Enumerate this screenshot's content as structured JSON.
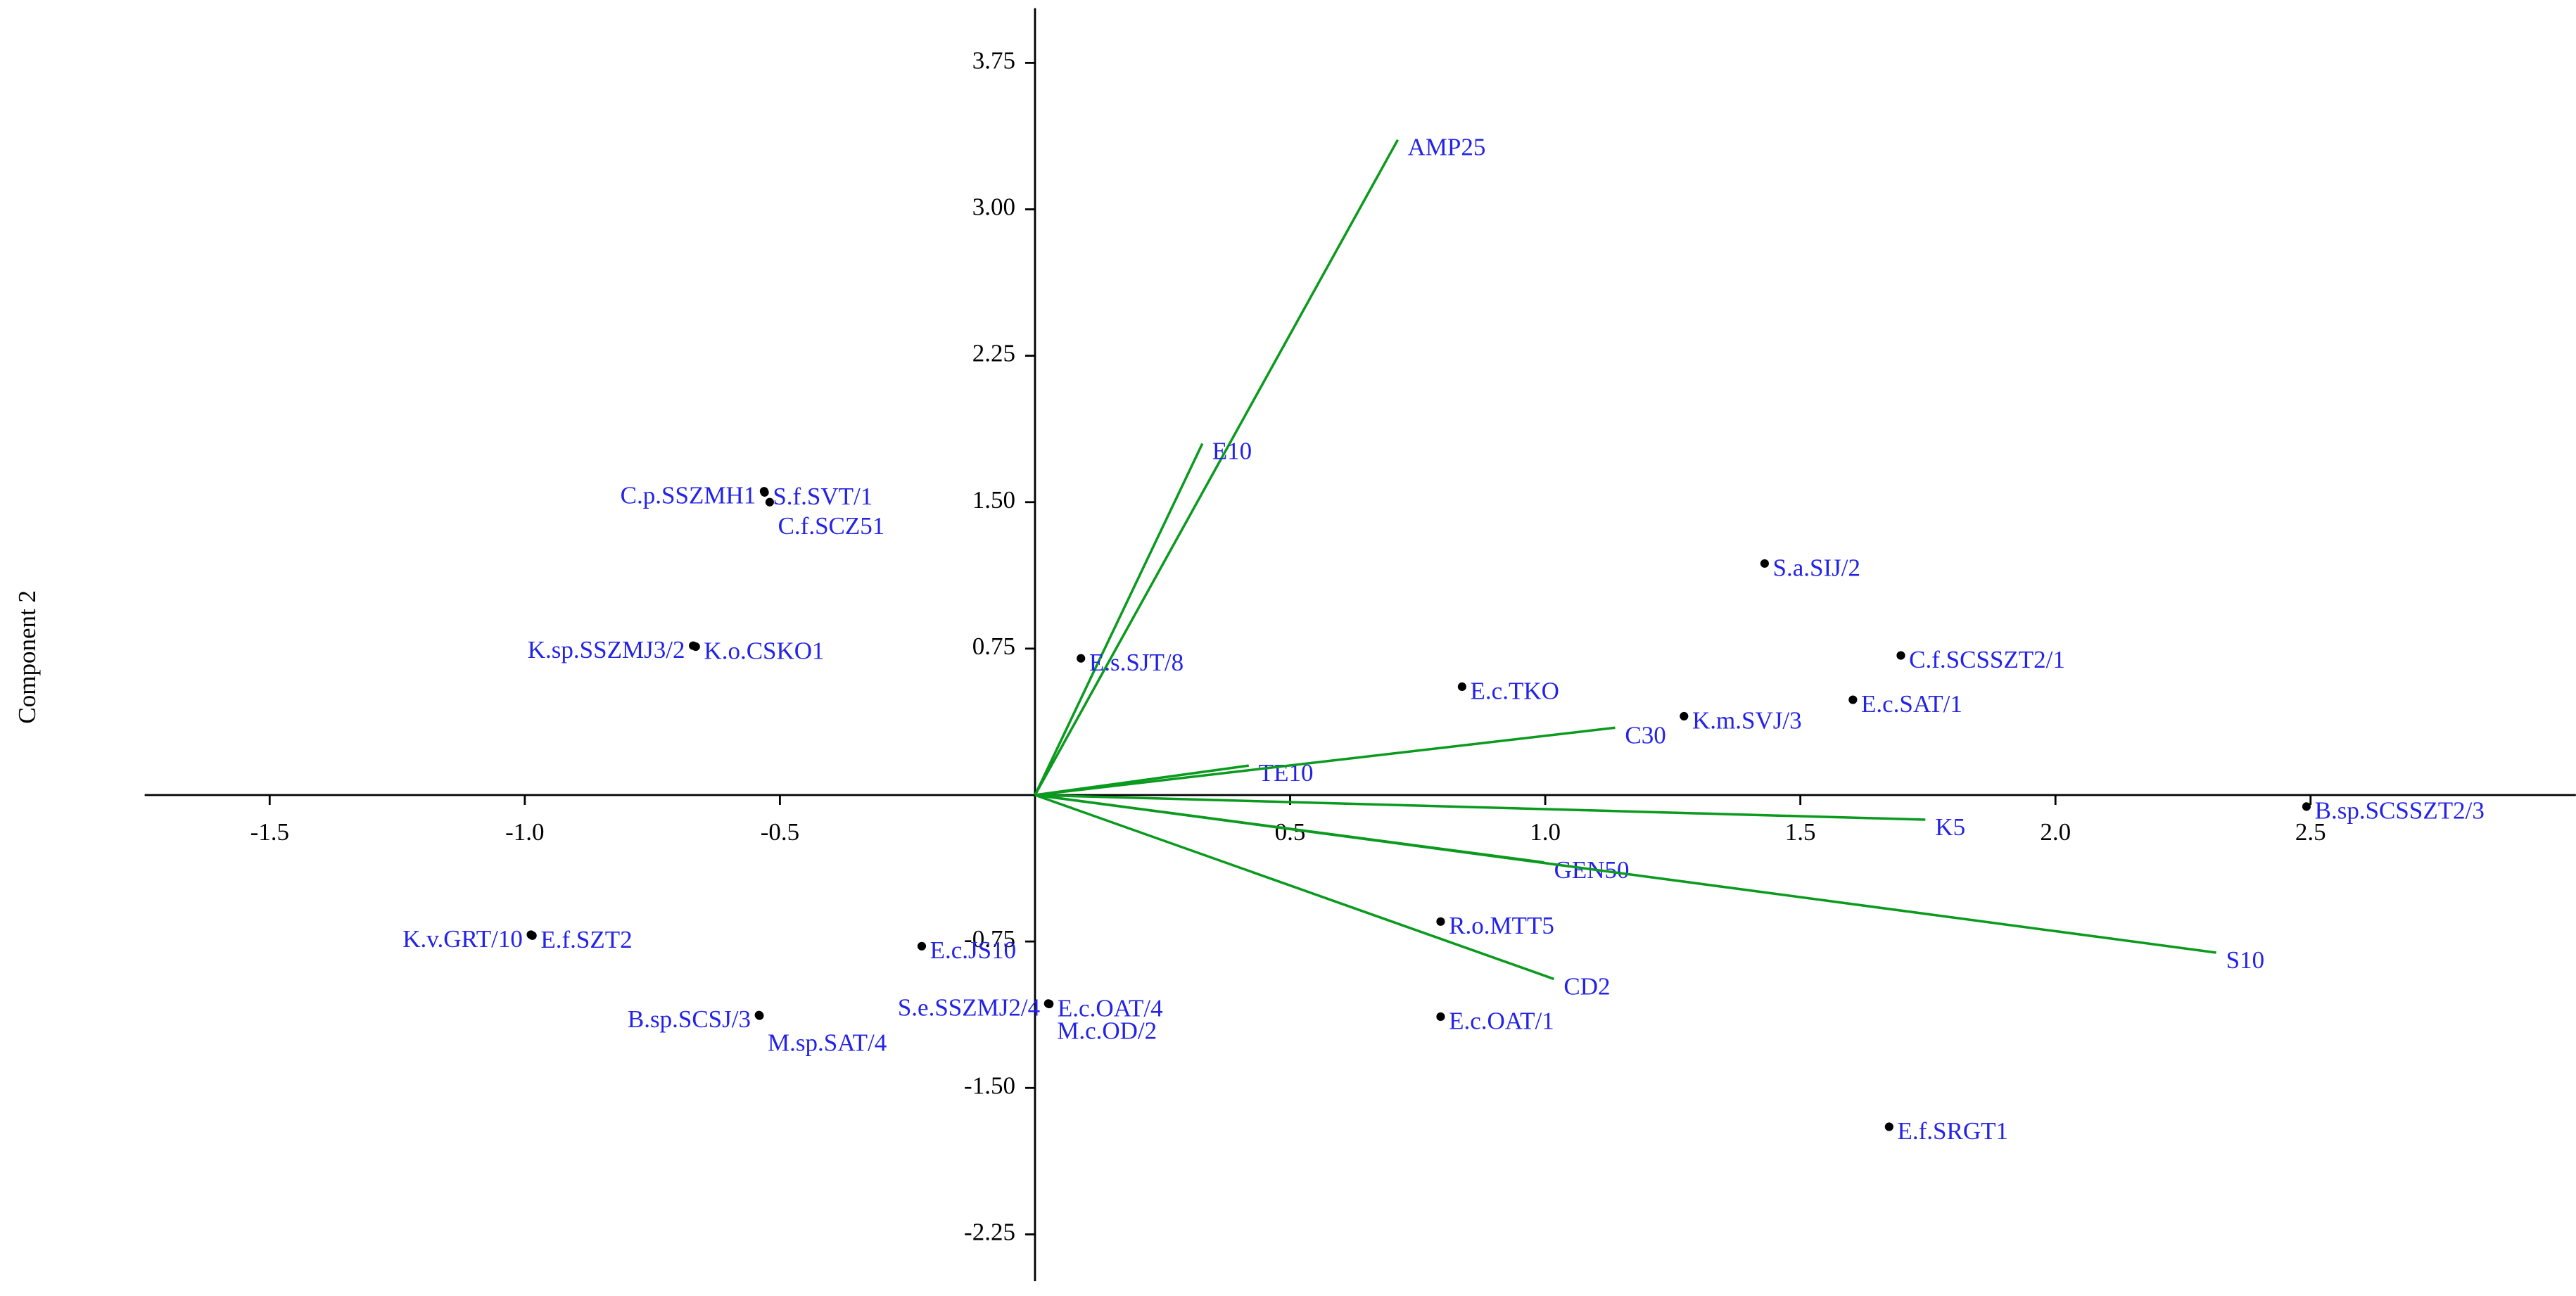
{
  "chart_data": {
    "type": "biplot",
    "y_label": "Component 2",
    "xlim": [
      -1.745,
      3.02
    ],
    "ylim": [
      -2.49,
      4.03
    ],
    "xticks": [
      -1.5,
      {
        "value": -1,
        "label": "-1.0"
      },
      -0.5,
      0.5,
      {
        "value": 1,
        "label": "1.0"
      },
      1.5,
      {
        "value": 2,
        "label": "2.0"
      },
      2.5
    ],
    "yticks": [
      {
        "value": -2.25,
        "label": "-2.25"
      },
      {
        "value": -1.5,
        "label": "-1.50"
      },
      -0.75,
      0.75,
      {
        "value": 1.5,
        "label": "1.50"
      },
      2.25,
      {
        "value": 3,
        "label": "3.00"
      },
      3.75
    ],
    "point_color": "#000000",
    "label_color": "#2323e8",
    "vector_color": "#0a9a1e",
    "points": {
      "labels": [
        "C.p.SSZMH1",
        "S.f.SVT/1",
        "C.f.SCZ51",
        "K.sp.SSZMJ3/2",
        "K.o.CSKO1",
        "E.s.SJT/8",
        "S.a.SIJ/2",
        "C.f.SCSSZT2/1",
        "E.c.TKO",
        "K.m.SVJ/3",
        "E.c.SAT/1",
        "B.sp.SCSSZT2/3",
        "R.o.MTT5",
        "E.c.OAT/1",
        "E.f.SRGT1",
        "E.c.JS10",
        "S.e.SSZMJ2/4",
        "E.c.OAT/4",
        "M.c.OD/2",
        "K.v.GRT/10",
        "E.f.SZT2",
        "B.sp.SCSJ/3",
        "M.sp.SAT/4"
      ],
      "x": [
        -0.531,
        -0.53,
        -0.52,
        -0.67,
        -0.665,
        0.09,
        1.43,
        1.697,
        0.837,
        1.272,
        1.603,
        2.492,
        0.795,
        0.795,
        1.674,
        -0.222,
        0.026,
        0.028,
        0.027,
        -0.988,
        -0.985,
        -0.541,
        -0.54
      ],
      "y": [
        1.556,
        1.55,
        1.5,
        0.765,
        0.76,
        0.7,
        1.186,
        0.715,
        0.555,
        0.404,
        0.488,
        -0.059,
        -0.648,
        -1.135,
        -1.699,
        -0.774,
        -1.068,
        -1.07,
        -1.069,
        -0.715,
        -0.72,
        -1.127,
        -1.13
      ]
    },
    "vectors": {
      "labels": [
        "AMP25",
        "E10",
        "TE10",
        "C30",
        "K5",
        "GEN50",
        "S10",
        "CD2"
      ],
      "x": [
        0.711,
        0.328,
        0.419,
        1.137,
        1.745,
        0.998,
        2.315,
        1.017
      ],
      "y": [
        3.356,
        1.8,
        0.151,
        0.345,
        -0.126,
        -0.345,
        -0.807,
        -0.942
      ]
    }
  }
}
